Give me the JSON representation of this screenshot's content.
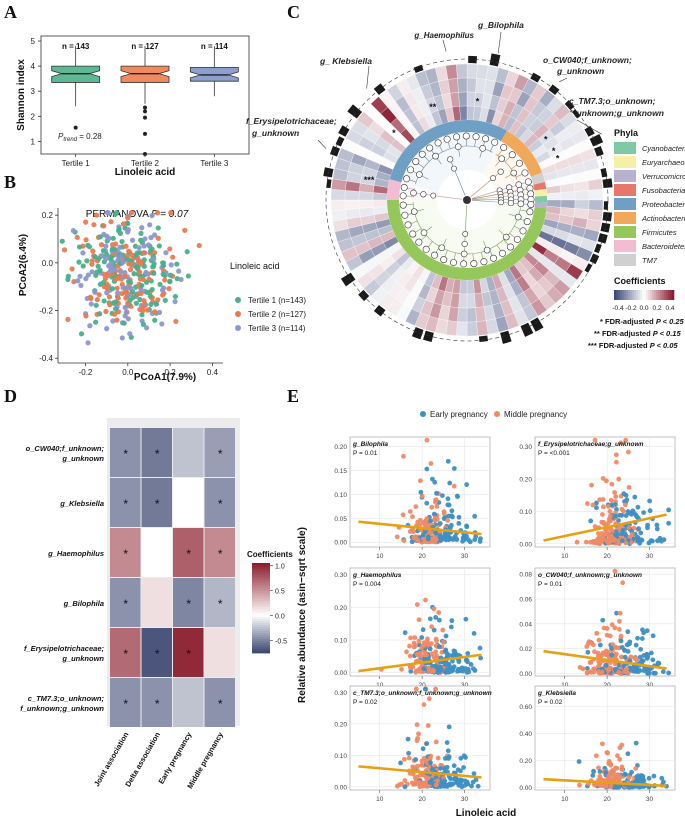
{
  "panels": {
    "a": "A",
    "b": "B",
    "c": "C",
    "d": "D",
    "e": "E"
  },
  "panelA": {
    "ylabel": "Shannon index",
    "xlabel": "Linoleic acid",
    "p_trend_label": "P",
    "p_trend_sub": "trend",
    "p_trend_value": " = 0.28",
    "colors": [
      "#5db894",
      "#f08a5d",
      "#8c9fcf"
    ]
  },
  "panelB": {
    "title": "PERMANOVA",
    "title_p": "P = 0.07",
    "xlabel": "PCoA1(7.9%)",
    "ylabel": "PCoA2(6.4%)",
    "legend_title": "Linoleic acid",
    "legend": [
      "Tertile 1 (n=143)",
      "Tertile 2 (n=127)",
      "Tertile 3 (n=114)"
    ],
    "colors": [
      "#47b08a",
      "#e97a50",
      "#8c97cc"
    ]
  },
  "panelC": {
    "labels": [
      "g_Haemophilus",
      "g_Bilophila",
      "g_ Klebsiella",
      "o_CW040;f_unknown;",
      "g_unknown",
      "c_TM7.3;o_unknown;",
      "f_unknown;g_unknown",
      "f_Erysipelotrichaceae;",
      "g_unknown"
    ],
    "phyla_title": "Phyla",
    "phyla": [
      {
        "name": "Cyanobacteria",
        "color": "#7fcaa5"
      },
      {
        "name": "Euryarchaeota",
        "color": "#f5f0a6"
      },
      {
        "name": "Verrucomicrobia",
        "color": "#b8b2cf"
      },
      {
        "name": "Fusobacteria",
        "color": "#e8776b"
      },
      {
        "name": "Proteobacteria",
        "color": "#6f9fc4"
      },
      {
        "name": "Actinobacteria",
        "color": "#f2a85a"
      },
      {
        "name": "Firmicutes",
        "color": "#95c75a"
      },
      {
        "name": "Bacteroidetes",
        "color": "#f2bcd2"
      },
      {
        "name": "TM7",
        "color": "#d0d0d0"
      }
    ],
    "coef_title": "Coefficients",
    "coef_ticks": [
      "-0.4",
      "-0.2",
      "0.0",
      "0.2",
      "0.4"
    ],
    "fdr": [
      {
        "stars": "*",
        "text": "FDR-adjusted",
        "value": "P < 0.25"
      },
      {
        "stars": "**",
        "text": "FDR-adjusted",
        "value": "P < 0.15"
      },
      {
        "stars": "***",
        "text": "FDR-adjusted",
        "value": "P < 0.05"
      }
    ]
  },
  "panelD": {
    "legend_title": "Coefficients",
    "legend_ticks": [
      "1.0",
      "0.5",
      "0.0",
      "-0.5"
    ],
    "star": "*"
  },
  "panelE": {
    "legend": [
      "Early pregnancy",
      "Middle pregnancy"
    ],
    "colors": [
      "#3d8fc4",
      "#f08a64"
    ],
    "fit_color": "#e6a012",
    "ylabel": "Relative abundance (asin−sqrt scale)",
    "xlabel": "Linoleic acid",
    "x_ticks": [
      "10",
      "20",
      "30"
    ]
  },
  "chart_data": [
    {
      "type": "box",
      "panel": "A",
      "title": "",
      "xlabel": "Linoleic acid",
      "ylabel": "Shannon index",
      "categories": [
        "Tertile 1",
        "Tertile 2",
        "Tertile 3"
      ],
      "counts": [
        "n = 143",
        "n = 127",
        "n = 114"
      ],
      "ylim": [
        0.5,
        5.2
      ],
      "y_ticks": [
        1,
        2,
        3,
        4,
        5
      ],
      "boxes": [
        {
          "min": 2.4,
          "q1": 3.35,
          "median": 3.7,
          "q3": 4.0,
          "max": 4.8,
          "outliers": [
            1.55
          ]
        },
        {
          "min": 2.5,
          "q1": 3.35,
          "median": 3.7,
          "q3": 4.0,
          "max": 4.8,
          "outliers": [
            2.35,
            2.2,
            1.95,
            1.3,
            0.5
          ]
        },
        {
          "min": 2.8,
          "q1": 3.4,
          "median": 3.65,
          "q3": 3.95,
          "max": 4.8,
          "outliers": []
        }
      ],
      "p_trend": 0.28
    },
    {
      "type": "scatter",
      "panel": "B",
      "title": "PERMANOVA P = 0.07",
      "xlabel": "PCoA1(7.9%)",
      "ylabel": "PCoA2(6.4%)",
      "xlim": [
        -0.33,
        0.45
      ],
      "ylim": [
        -0.42,
        0.23
      ],
      "x_ticks": [
        -0.2,
        0.0,
        0.2,
        0.4
      ],
      "y_ticks": [
        -0.4,
        -0.2,
        0.0,
        0.2
      ],
      "series": [
        {
          "name": "Tertile 1 (n=143)",
          "n": 143
        },
        {
          "name": "Tertile 2 (n=127)",
          "n": 127
        },
        {
          "name": "Tertile 3 (n=114)",
          "n": 114
        }
      ]
    },
    {
      "type": "heatmap",
      "panel": "D",
      "rows": [
        "o_CW040;f_unknown;",
        "g_Klebsiella",
        "g_Haemophilus",
        "g_Bilophila",
        "f_Erysipelotrichaceae;",
        "c_TM7.3;o_unknown;"
      ],
      "rows_line2": [
        "g_unknown",
        "",
        "",
        "",
        "g_unknown",
        "f_unknown;g_unknown"
      ],
      "columns": [
        "Joint association",
        "Delta association",
        "Early pregnancy",
        "Middle pregnancy"
      ],
      "values": [
        [
          -0.45,
          -0.55,
          -0.25,
          -0.4
        ],
        [
          -0.45,
          -0.55,
          0.0,
          -0.45
        ],
        [
          0.55,
          0.0,
          0.75,
          0.55
        ],
        [
          -0.45,
          0.15,
          -0.5,
          -0.3
        ],
        [
          0.7,
          -0.7,
          1.0,
          0.15
        ],
        [
          -0.45,
          -0.45,
          -0.25,
          -0.45
        ]
      ],
      "significant": [
        [
          true,
          true,
          false,
          true
        ],
        [
          true,
          true,
          false,
          true
        ],
        [
          true,
          false,
          true,
          true
        ],
        [
          true,
          false,
          true,
          true
        ],
        [
          true,
          true,
          true,
          false
        ],
        [
          true,
          true,
          false,
          true
        ]
      ],
      "zlim": [
        -0.75,
        1.05
      ]
    },
    {
      "type": "scatter",
      "panel": "E",
      "xlabel": "Linoleic acid",
      "ylabel": "Relative abundance (asin-sqrt scale)",
      "xlim": [
        3,
        36
      ],
      "legend": [
        "Early pregnancy",
        "Middle pregnancy"
      ],
      "subplots": [
        {
          "title": "g_Bilophila",
          "p": "P = 0.01",
          "ylim": [
            -0.01,
            0.22
          ],
          "y_ticks": [
            0.0,
            0.05,
            0.1,
            0.15,
            0.2
          ],
          "y_tick_labels": [
            "0.00",
            "0.05",
            "0.10",
            "0.15",
            "0.20"
          ],
          "fit": [
            [
              5,
              0.043
            ],
            [
              34,
              0.017
            ]
          ],
          "y_center": 0.02,
          "y_spread": 0.04
        },
        {
          "title": "f_Erysipelotrichaceae;g_unknown",
          "p": "P = <0.001",
          "ylim": [
            -0.01,
            0.33
          ],
          "y_ticks": [
            0.0,
            0.1,
            0.2,
            0.3
          ],
          "y_tick_labels": [
            "0.00",
            "0.10",
            "0.20",
            "0.30"
          ],
          "fit": [
            [
              5,
              0.01
            ],
            [
              34,
              0.09
            ]
          ],
          "y_center": 0.05,
          "y_spread": 0.07
        },
        {
          "title": "g_Haemophilus",
          "p": "P = 0.004",
          "ylim": [
            -0.01,
            0.32
          ],
          "y_ticks": [
            0.0,
            0.1,
            0.2,
            0.3
          ],
          "y_tick_labels": [
            "0.00",
            "0.10",
            "0.20",
            "0.30"
          ],
          "fit": [
            [
              5,
              0.005
            ],
            [
              34,
              0.055
            ]
          ],
          "y_center": 0.03,
          "y_spread": 0.06
        },
        {
          "title": "o_CW040;f_unknown;g_unknown",
          "p": "P = 0.01",
          "ylim": [
            -0.002,
            0.085
          ],
          "y_ticks": [
            0.0,
            0.02,
            0.04,
            0.06,
            0.08
          ],
          "y_tick_labels": [
            "0.00",
            "0.02",
            "0.04",
            "0.06",
            "0.08"
          ],
          "fit": [
            [
              5,
              0.018
            ],
            [
              34,
              0.004
            ]
          ],
          "y_center": 0.008,
          "y_spread": 0.014
        },
        {
          "title": "c_TM7.3;o_unknown;f_unknown;g_unknown",
          "p": "P = 0.02",
          "ylim": [
            -0.01,
            0.32
          ],
          "y_ticks": [
            0.0,
            0.1,
            0.2,
            0.3
          ],
          "y_tick_labels": [
            "0.00",
            "0.10",
            "0.20",
            "0.30"
          ],
          "fit": [
            [
              5,
              0.065
            ],
            [
              34,
              0.03
            ]
          ],
          "y_center": 0.03,
          "y_spread": 0.05
        },
        {
          "title": "g_Klebsiella",
          "p": "P = 0.02",
          "ylim": [
            -0.02,
            0.75
          ],
          "y_ticks": [
            0.0,
            0.2,
            0.4,
            0.6
          ],
          "y_tick_labels": [
            "0.00",
            "0.20",
            "0.40",
            "0.60"
          ],
          "fit": [
            [
              5,
              0.06
            ],
            [
              34,
              0.01
            ]
          ],
          "y_center": 0.02,
          "y_spread": 0.07
        }
      ]
    }
  ]
}
